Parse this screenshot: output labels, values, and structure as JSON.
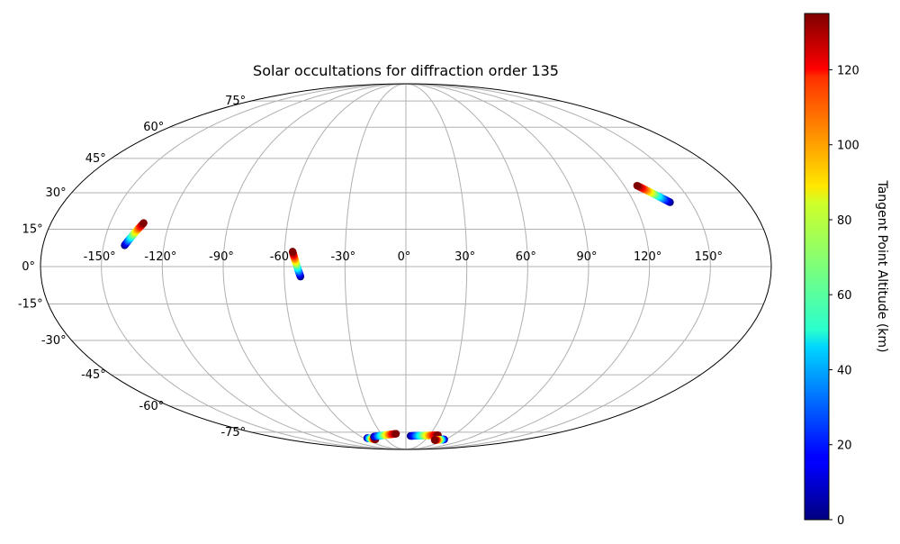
{
  "chart_data": {
    "type": "scatter",
    "projection": "mollweide",
    "title": "Solar occultations for diffraction order 135",
    "colorbar": {
      "label": "Tangent Point Altitude (km)",
      "colormap": "jet",
      "range": [
        0,
        135
      ],
      "ticks": [
        "0",
        "20",
        "40",
        "60",
        "80",
        "100",
        "120"
      ],
      "tick_values": [
        0,
        20,
        40,
        60,
        80,
        100,
        120
      ]
    },
    "longitude_ticks": [
      "-150°",
      "-120°",
      "-90°",
      "-60°",
      "-30°",
      "0°",
      "30°",
      "60°",
      "90°",
      "120°",
      "150°"
    ],
    "longitude_values": [
      -150,
      -120,
      -90,
      -60,
      -30,
      0,
      30,
      60,
      90,
      120,
      150
    ],
    "latitude_ticks": [
      "-75°",
      "-60°",
      "-45°",
      "-30°",
      "-15°",
      "0°",
      "15°",
      "30°",
      "45°",
      "60°",
      "75°"
    ],
    "latitude_values": [
      -75,
      -60,
      -45,
      -30,
      -15,
      0,
      15,
      30,
      45,
      60,
      75
    ],
    "grid": true,
    "tracks": [
      {
        "lon_start": -139.5,
        "lat_start": 8.5,
        "alt_start": 0,
        "lon_end": -133,
        "lat_end": 17.5,
        "alt_end": 135
      },
      {
        "lon_start": -52,
        "lat_start": -4,
        "alt_start": 0,
        "lon_end": -56,
        "lat_end": 6,
        "alt_end": 135
      },
      {
        "lon_start": 139,
        "lat_start": 26,
        "alt_start": 0,
        "lon_end": 127,
        "lat_end": 33,
        "alt_end": 135
      },
      {
        "lon_start": -55,
        "lat_start": -79,
        "alt_start": 0,
        "lon_end": -46,
        "lat_end": -80,
        "alt_end": 135
      },
      {
        "lon_start": -43,
        "lat_start": -78,
        "alt_start": 0,
        "lon_end": -12,
        "lat_end": -76,
        "alt_end": 135
      },
      {
        "lon_start": 6,
        "lat_start": -77.5,
        "alt_start": 0,
        "lon_end": 41,
        "lat_end": -77,
        "alt_end": 135
      },
      {
        "lon_start": 58,
        "lat_start": -80,
        "alt_start": 0,
        "lon_end": 45,
        "lat_end": -80.5,
        "alt_end": 135
      }
    ]
  }
}
